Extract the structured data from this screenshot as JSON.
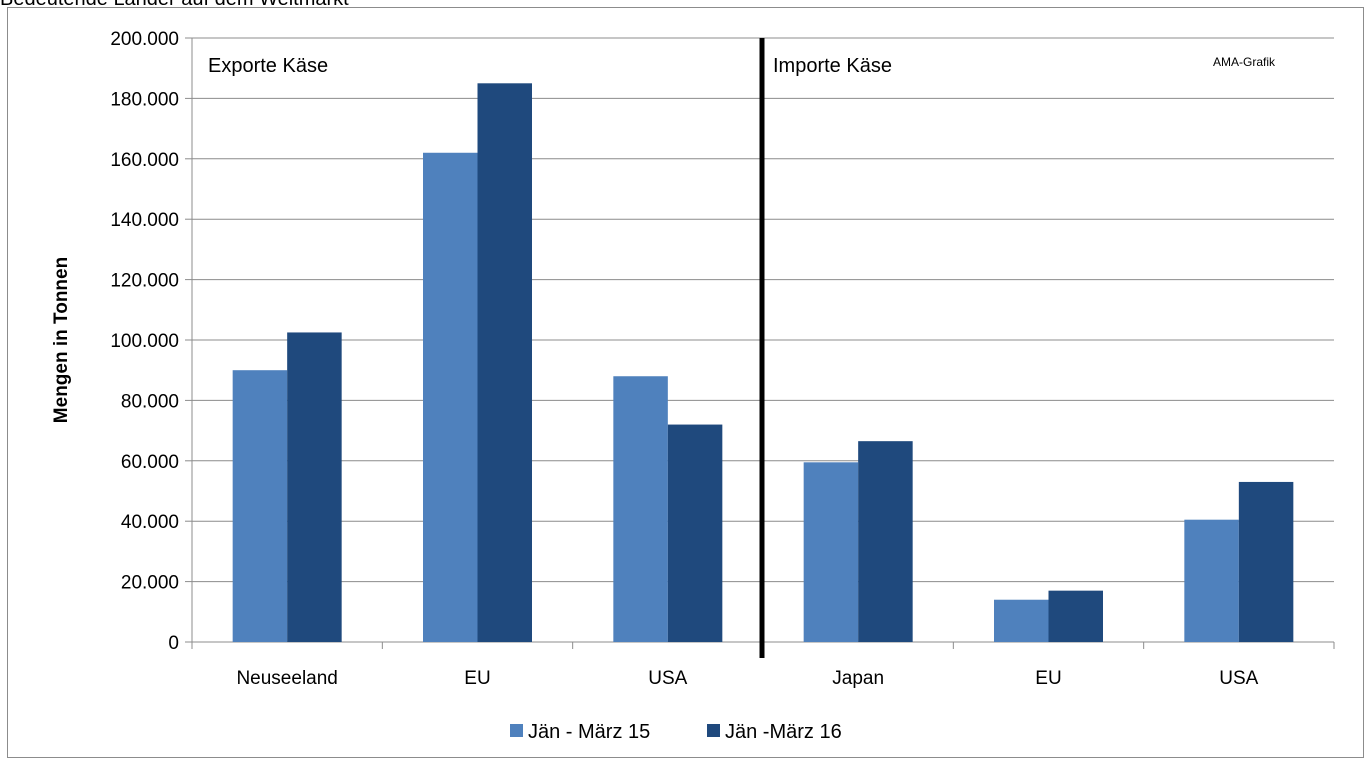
{
  "caption": "Bedeutende Länder auf dem Weltmarkt",
  "note": "AMA-Grafik",
  "chart_data": {
    "type": "bar",
    "title": "",
    "ylabel": "Mengen in Tonnen",
    "ylim": [
      0,
      200000
    ],
    "yticks": [
      "0",
      "20.000",
      "40.000",
      "60.000",
      "80.000",
      "100.000",
      "120.000",
      "140.000",
      "160.000",
      "180.000",
      "200.000"
    ],
    "grid": true,
    "legend_position": "bottom",
    "groups": [
      "Exporte Käse",
      "Importe Käse"
    ],
    "categories": [
      "Neuseeland",
      "EU",
      "USA",
      "Japan",
      "EU",
      "USA"
    ],
    "series": [
      {
        "name": "Jän - März 15",
        "color": "#4F81BD",
        "values": [
          90000,
          162000,
          88000,
          59500,
          14000,
          40500
        ]
      },
      {
        "name": "Jän -März 16",
        "color": "#1F497D",
        "values": [
          102500,
          185000,
          72000,
          66500,
          17000,
          53000
        ]
      }
    ]
  }
}
